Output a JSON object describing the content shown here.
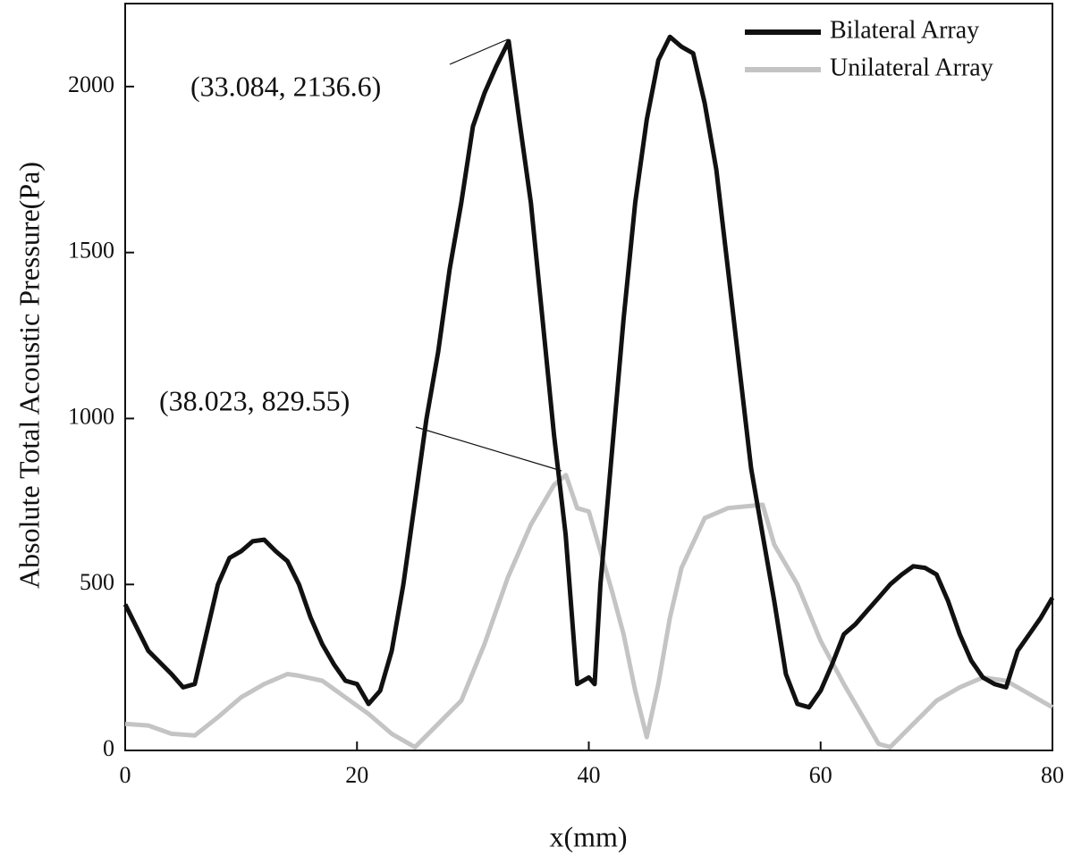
{
  "chart_data": {
    "type": "line",
    "x_label": "x(mm)",
    "y_label": "Absolute Total Acoustic Pressure(Pa)",
    "xlim": [
      0,
      80
    ],
    "xticks": [
      0,
      20,
      40,
      60,
      80
    ],
    "ylim": [
      0,
      2250
    ],
    "yticks": [
      0,
      500,
      1000,
      1500,
      2000
    ],
    "legend": "upper right",
    "annotations": [
      "(33.084, 2136.6)",
      "(38.023, 829.55)"
    ],
    "series": [
      {
        "name": "Bilateral Array",
        "color": "#111111",
        "x": [
          0,
          2,
          4,
          5,
          6,
          7,
          8,
          9,
          10,
          11,
          12,
          13,
          14,
          15,
          16,
          17,
          18,
          19,
          20,
          21,
          22,
          23,
          24,
          25,
          26,
          27,
          28,
          29,
          30,
          31,
          32,
          33.084,
          34,
          35,
          36,
          37,
          38,
          39,
          40,
          40.5,
          41,
          42,
          43,
          44,
          45,
          46,
          47,
          48,
          49,
          50,
          51,
          52,
          53,
          54,
          55,
          56,
          57,
          58,
          59,
          60,
          61,
          62,
          63,
          64,
          65,
          66,
          67,
          68,
          69,
          70,
          71,
          72,
          73,
          74,
          75,
          76,
          77,
          78,
          79,
          80
        ],
        "values": [
          440,
          300,
          230,
          190,
          200,
          350,
          500,
          580,
          600,
          630,
          635,
          600,
          570,
          500,
          400,
          320,
          260,
          210,
          200,
          140,
          180,
          300,
          500,
          750,
          1000,
          1200,
          1450,
          1650,
          1880,
          1980,
          2060,
          2136.6,
          1900,
          1650,
          1300,
          950,
          650,
          200,
          220,
          200,
          500,
          900,
          1300,
          1650,
          1900,
          2080,
          2150,
          2120,
          2100,
          1950,
          1750,
          1450,
          1150,
          850,
          650,
          450,
          230,
          140,
          130,
          180,
          260,
          350,
          380,
          420,
          460,
          500,
          530,
          555,
          550,
          530,
          450,
          350,
          270,
          220,
          200,
          190,
          300,
          350,
          400,
          460
        ]
      },
      {
        "name": "Unilateral Array",
        "color": "#c4c4c4",
        "x": [
          0,
          2,
          4,
          6,
          8,
          10,
          12,
          14,
          15,
          17,
          19,
          21,
          23,
          25,
          27,
          29,
          31,
          33,
          35,
          37,
          38.023,
          39,
          40,
          41,
          42,
          43,
          44,
          45,
          46,
          47,
          48,
          50,
          52,
          55,
          56,
          58,
          60,
          62,
          64,
          65,
          66,
          68,
          70,
          72,
          74,
          76,
          78,
          80
        ],
        "values": [
          80,
          75,
          50,
          45,
          100,
          160,
          200,
          230,
          225,
          210,
          160,
          110,
          50,
          10,
          80,
          150,
          320,
          520,
          680,
          800,
          829.55,
          730,
          720,
          600,
          480,
          350,
          180,
          40,
          200,
          400,
          550,
          700,
          730,
          740,
          620,
          500,
          330,
          200,
          80,
          20,
          10,
          80,
          150,
          190,
          220,
          210,
          170,
          130
        ]
      }
    ]
  }
}
